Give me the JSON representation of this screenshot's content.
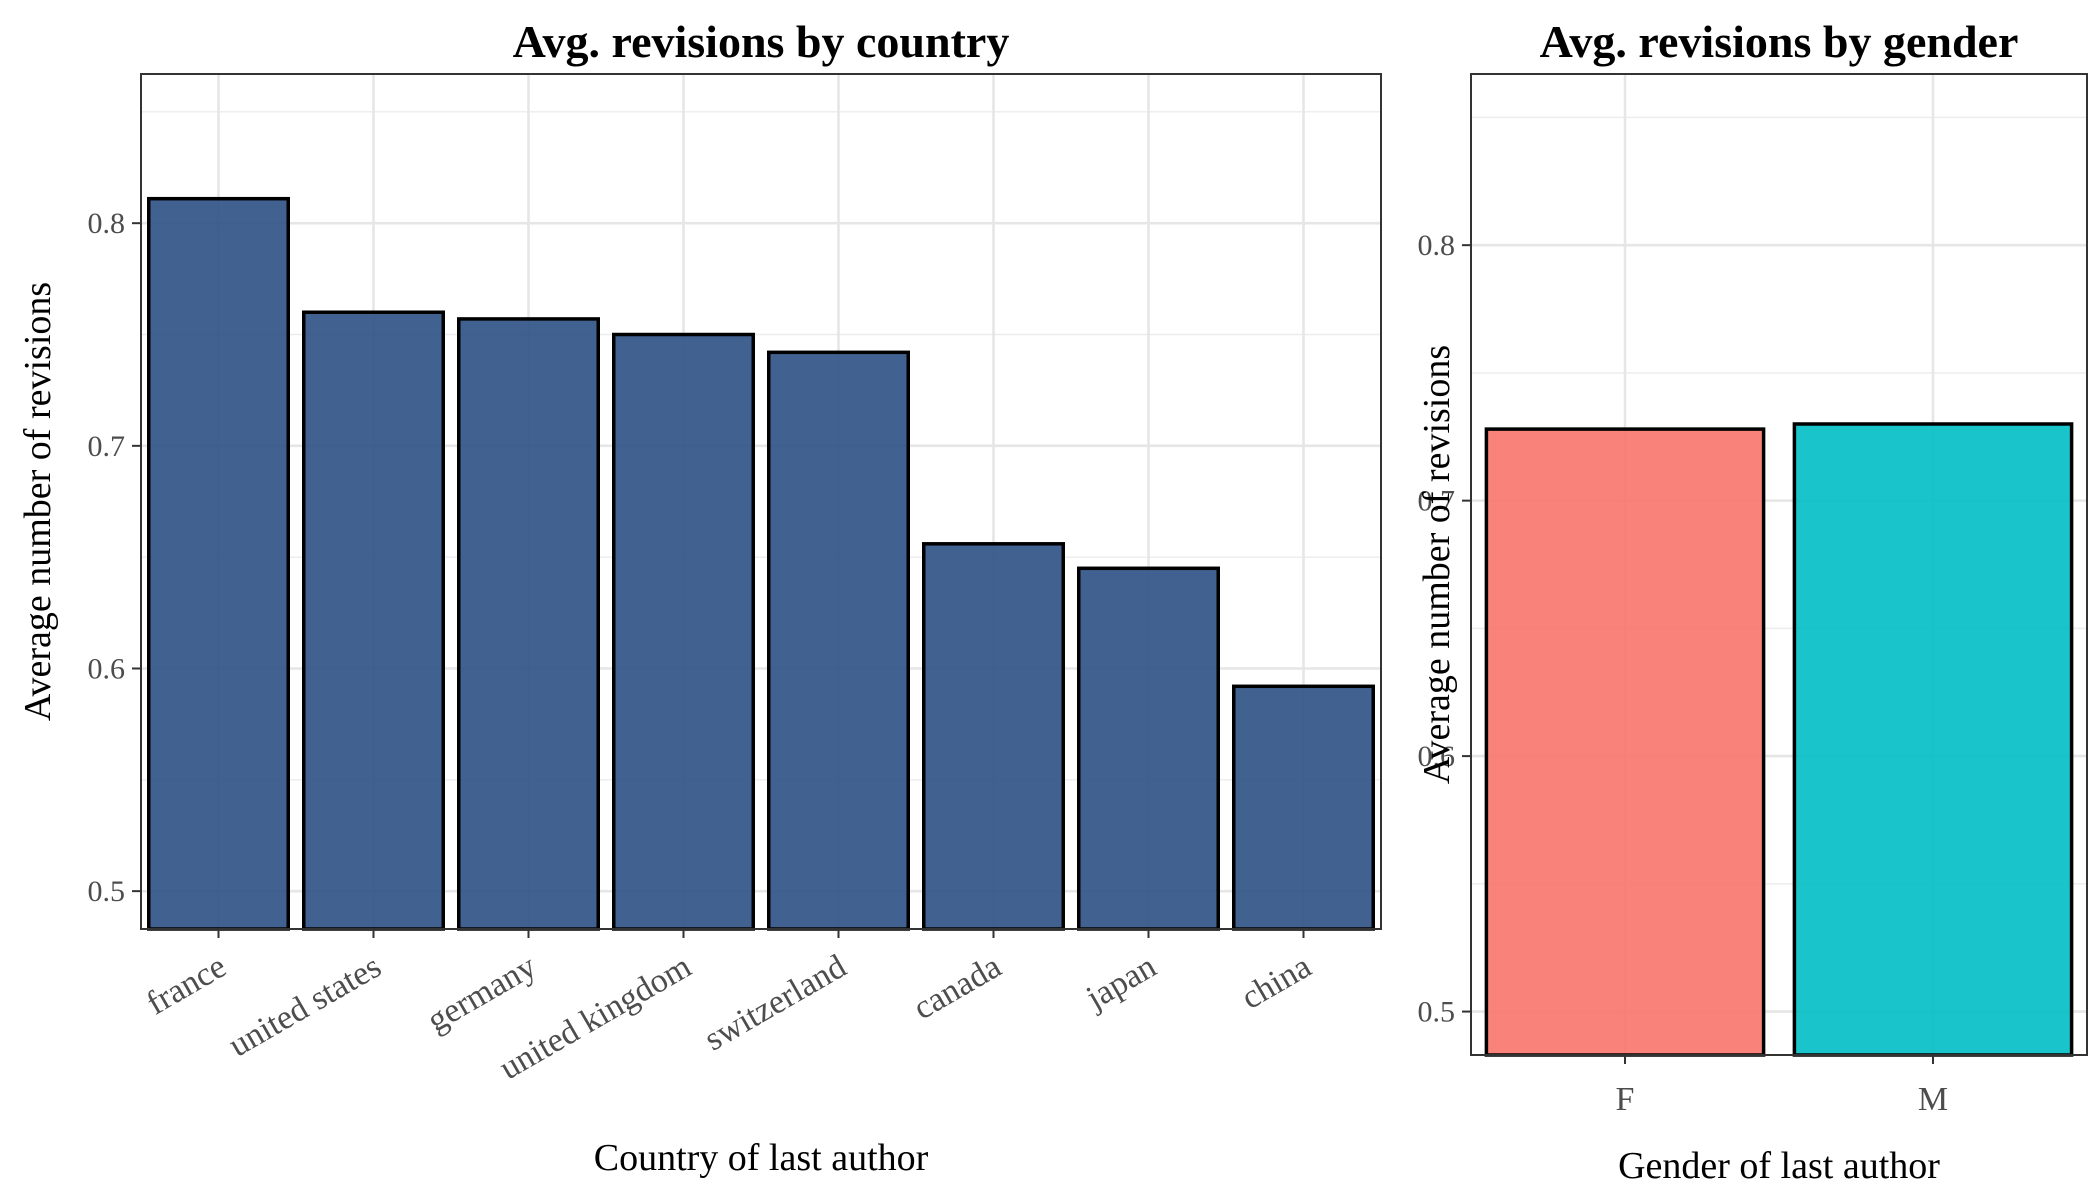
{
  "chart_data": [
    {
      "type": "bar",
      "title": "Avg. revisions by country",
      "xlabel": "Country of last author",
      "ylabel": "Average number of revisions",
      "categories": [
        "france",
        "united states",
        "germany",
        "united kingdom",
        "switzerland",
        "canada",
        "japan",
        "china"
      ],
      "values": [
        0.811,
        0.76,
        0.757,
        0.75,
        0.742,
        0.656,
        0.645,
        0.592
      ],
      "colors": [
        "#2c5085",
        "#2c5085",
        "#2c5085",
        "#2c5085",
        "#2c5085",
        "#2c5085",
        "#2c5085",
        "#2c5085"
      ],
      "ylim": [
        0.483,
        0.867
      ],
      "yticks": [
        0.5,
        0.6,
        0.7,
        0.8
      ],
      "ytick_labels": [
        "0.5",
        "0.6",
        "0.7",
        "0.8"
      ],
      "grid": true,
      "x_tick_rotation": "angled"
    },
    {
      "type": "bar",
      "title": "Avg. revisions by gender",
      "xlabel": "Gender of last author",
      "ylabel": "Average number of revisions",
      "categories": [
        "F",
        "M"
      ],
      "values": [
        0.728,
        0.73
      ],
      "colors": [
        "#f8766d",
        "#00bfc4"
      ],
      "ylim": [
        0.483,
        0.867
      ],
      "yticks": [
        0.5,
        0.6,
        0.7,
        0.8
      ],
      "ytick_labels": [
        "0.5",
        "0.6",
        "0.7",
        "0.8"
      ],
      "grid": true,
      "x_tick_rotation": "none"
    }
  ]
}
